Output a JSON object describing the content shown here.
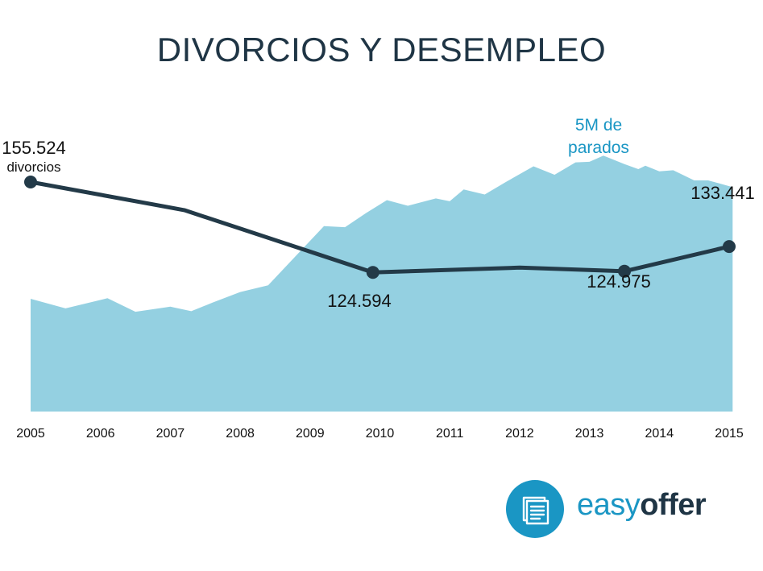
{
  "chart_data": {
    "type": "line",
    "title": "DIVORCIOS Y DESEMPLEO",
    "x_ticks": [
      "2005",
      "2006",
      "2007",
      "2008",
      "2009",
      "2010",
      "2011",
      "2012",
      "2013",
      "2014",
      "2015"
    ],
    "series": [
      {
        "kind": "area",
        "unit": "parados",
        "color": "#94d0e1",
        "points": [
          [
            2005.0,
            2.0
          ],
          [
            2005.5,
            1.83
          ],
          [
            2006.1,
            2.01
          ],
          [
            2006.5,
            1.77
          ],
          [
            2007.0,
            1.86
          ],
          [
            2007.3,
            1.78
          ],
          [
            2007.6,
            1.93
          ],
          [
            2008.0,
            2.12
          ],
          [
            2008.4,
            2.24
          ],
          [
            2009.2,
            3.29
          ],
          [
            2009.5,
            3.27
          ],
          [
            2009.8,
            3.52
          ],
          [
            2010.1,
            3.75
          ],
          [
            2010.4,
            3.65
          ],
          [
            2010.8,
            3.78
          ],
          [
            2011.0,
            3.73
          ],
          [
            2011.2,
            3.94
          ],
          [
            2011.5,
            3.85
          ],
          [
            2011.8,
            4.07
          ],
          [
            2012.2,
            4.35
          ],
          [
            2012.5,
            4.2
          ],
          [
            2012.8,
            4.42
          ],
          [
            2013.0,
            4.43
          ],
          [
            2013.2,
            4.54
          ],
          [
            2013.5,
            4.39
          ],
          [
            2013.7,
            4.3
          ],
          [
            2013.8,
            4.36
          ],
          [
            2014.0,
            4.26
          ],
          [
            2014.2,
            4.28
          ],
          [
            2014.5,
            4.1
          ],
          [
            2014.7,
            4.1
          ],
          [
            2014.85,
            4.05
          ],
          [
            2015.05,
            3.98
          ]
        ],
        "peak_label_line1": "5M de",
        "peak_label_line2": "parados",
        "peak_label_color": "#1a96c4"
      },
      {
        "kind": "line",
        "unit": "divorcios",
        "color": "#233a48",
        "points": [
          [
            2005.0,
            155524
          ],
          [
            2007.2,
            145900
          ],
          [
            2009.9,
            124594
          ],
          [
            2012.0,
            126200
          ],
          [
            2013.5,
            124975
          ],
          [
            2015.0,
            133441
          ]
        ],
        "markers_at": [
          0,
          2,
          4,
          5
        ]
      }
    ],
    "annotations": {
      "first_value": "155.524",
      "first_unit": "divorcios",
      "a2010": "124.594",
      "a2013": "124.975",
      "a2015": "133.441"
    }
  },
  "brand": {
    "name_part1": "easy",
    "name_part2": "offer",
    "logo_icon": "document-stack-icon",
    "circle_color": "#1a96c4"
  }
}
